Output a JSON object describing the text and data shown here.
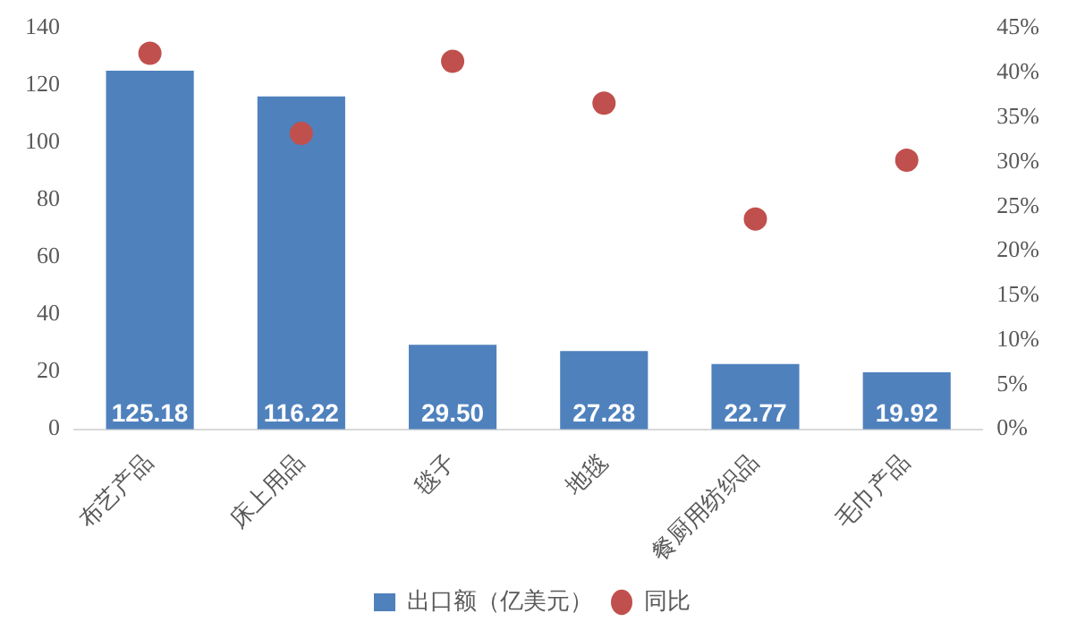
{
  "chart_data": {
    "type": "bar",
    "categories": [
      "布艺产品",
      "床上用品",
      "毯子",
      "地毯",
      "餐厨用纺织品",
      "毛巾产品"
    ],
    "series": [
      {
        "name": "出口额（亿美元）",
        "color": "#4f81bd",
        "values": [
          125.18,
          116.22,
          29.5,
          27.28,
          22.77,
          19.92
        ],
        "value_labels": [
          "125.18",
          "116.22",
          "29.50",
          "27.28",
          "22.77",
          "19.92"
        ]
      },
      {
        "name": "同比",
        "type": "scatter",
        "axis": "y2",
        "color": "#c0504d",
        "values": [
          42.2,
          33.2,
          41.3,
          36.6,
          23.6,
          30.2
        ]
      }
    ],
    "ylim": [
      0,
      140
    ],
    "yticks": [
      0,
      20,
      40,
      60,
      80,
      100,
      120,
      140
    ],
    "y2lim": [
      0,
      45
    ],
    "y2ticks": [
      {
        "value": 0,
        "label": "0%"
      },
      {
        "value": 5,
        "label": "5%"
      },
      {
        "value": 10,
        "label": "10%"
      },
      {
        "value": 15,
        "label": "15%"
      },
      {
        "value": 20,
        "label": "20%"
      },
      {
        "value": 25,
        "label": "25%"
      },
      {
        "value": 30,
        "label": "30%"
      },
      {
        "value": 35,
        "label": "35%"
      },
      {
        "value": 40,
        "label": "40%"
      },
      {
        "value": 45,
        "label": "45%"
      }
    ],
    "grid": false,
    "legend": "bottom",
    "marker": "circle"
  }
}
